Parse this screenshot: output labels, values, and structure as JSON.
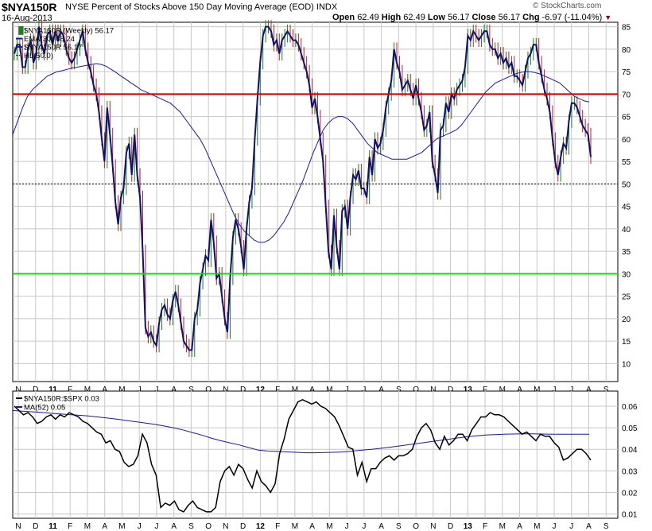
{
  "header": {
    "symbol": "$NYA150R",
    "title": "NYSE Percent of Stocks Above 150 Day Moving Average (EOD)",
    "exchange": "INDX",
    "date": "16-Aug-2013",
    "open_label": "Open",
    "open": "62.49",
    "high_label": "High",
    "high": "62.49",
    "low_label": "Low",
    "low": "56.17",
    "close_label": "Close",
    "close": "56.17",
    "chg_label": "Chg",
    "chg": "-6.97 (-11.04%)",
    "chg_icon": "down-triangle-icon",
    "watermark": "© StockCharts.com"
  },
  "colors": {
    "price": "#10106e",
    "ema": "#1a1aa0",
    "up_bar": "#1e7b1e",
    "down_bar": "#b22222",
    "red_line": "#cc0000",
    "green_line": "#22cc22",
    "ratio": "#000000",
    "ma": "#1a1aa0",
    "grid": "#c8c8c8"
  },
  "legend_top": [
    {
      "text": "$NYA150R (Weekly) 56.17",
      "swatch": "ohlc"
    },
    {
      "text": "EMA(30) 68.24",
      "swatch": "line"
    },
    {
      "text": "$NYA150R 56.17",
      "swatch": "line"
    },
    {
      "text": "HL(50.0)",
      "swatch": "dots"
    }
  ],
  "legend_bottom": [
    {
      "text": "$NYA150R:$SPX 0.03",
      "swatch": "line"
    },
    {
      "text": "MA(52) 0.05",
      "swatch": "line"
    }
  ],
  "x_ticks": [
    "N",
    "D",
    "11",
    "F",
    "M",
    "A",
    "M",
    "J",
    "J",
    "A",
    "S",
    "O",
    "N",
    "D",
    "12",
    "F",
    "M",
    "A",
    "M",
    "J",
    "J",
    "A",
    "S",
    "O",
    "N",
    "D",
    "13",
    "F",
    "M",
    "A",
    "M",
    "J",
    "J",
    "A",
    "S"
  ],
  "chart_data": [
    {
      "type": "line",
      "title": "$NYA150R (Weekly)",
      "ylim": [
        6,
        86
      ],
      "y_ticks": [
        10,
        15,
        20,
        25,
        30,
        35,
        40,
        45,
        50,
        55,
        60,
        65,
        70,
        75,
        80,
        85
      ],
      "horizontal_lines": [
        {
          "name": "HL(50.0)",
          "value": 50,
          "style": "dotted"
        },
        {
          "value": 70,
          "color": "red"
        },
        {
          "value": 30,
          "color": "green"
        }
      ],
      "grid": true,
      "series": [
        {
          "name": "$NYA150R",
          "values": [
            79,
            81,
            81,
            76,
            76,
            80,
            82,
            77,
            79,
            85,
            81,
            79,
            83,
            84,
            81,
            84,
            82,
            84,
            83,
            80,
            78,
            77,
            78,
            80,
            82,
            84,
            80,
            77,
            75,
            72,
            70,
            66,
            60,
            55,
            67,
            61,
            54,
            46,
            41,
            47,
            49,
            57,
            59,
            52,
            61,
            52,
            47,
            35,
            18,
            16,
            17,
            15,
            14,
            19,
            22,
            23,
            21,
            20,
            24,
            26,
            23,
            19,
            15,
            14,
            13,
            13,
            20,
            22,
            28,
            31,
            34,
            33,
            42,
            37,
            29,
            30,
            25,
            20,
            17,
            29,
            38,
            42,
            40,
            36,
            31,
            40,
            46,
            49,
            60,
            69,
            77,
            83,
            85,
            85,
            84,
            81,
            82,
            79,
            82,
            83,
            84,
            83,
            82,
            82,
            81,
            79,
            77,
            75,
            72,
            67,
            69,
            65,
            60,
            55,
            45,
            35,
            31,
            43,
            36,
            31,
            44,
            45,
            40,
            47,
            52,
            51,
            53,
            49,
            49,
            47,
            56,
            52,
            60,
            58,
            59,
            62,
            67,
            70,
            73,
            80,
            77,
            75,
            71,
            72,
            73,
            71,
            69,
            72,
            69,
            66,
            62,
            63,
            66,
            55,
            52,
            48,
            62,
            63,
            68,
            66,
            70,
            69,
            71,
            72,
            73,
            76,
            83,
            82,
            84,
            83,
            82,
            83,
            84,
            84,
            81,
            80,
            80,
            78,
            79,
            77,
            78,
            76,
            77,
            74,
            74,
            73,
            72,
            75,
            78,
            79,
            81,
            81,
            77,
            74,
            71,
            69,
            66,
            60,
            55,
            52,
            56,
            59,
            58,
            64,
            68,
            68,
            67,
            65,
            63,
            62,
            61,
            56
          ]
        },
        {
          "name": "EMA(30)",
          "values": [
            61,
            64,
            67,
            69.5,
            71,
            72,
            73,
            74,
            74.5,
            75,
            75.2,
            75.5,
            75.8,
            76,
            76.2,
            76.4,
            76.6,
            76.8,
            76.6,
            76.2,
            75.5,
            74.8,
            74,
            73.3,
            72.5,
            71.8,
            71,
            70.5,
            70,
            69.5,
            69,
            68.5,
            68,
            67,
            66,
            64.5,
            63,
            61.5,
            60,
            58,
            55.5,
            53,
            50.5,
            48,
            45.5,
            43,
            41,
            39.5,
            38.5,
            37.5,
            37,
            37,
            37.5,
            38.5,
            40,
            41.5,
            43.5,
            46,
            48.5,
            51,
            54,
            57,
            59.5,
            62,
            63.5,
            64.5,
            65,
            65,
            64.5,
            63.5,
            62,
            60.5,
            59,
            58,
            57,
            56.5,
            56,
            55.5,
            55.5,
            55.5,
            55.5,
            56,
            56.5,
            57,
            58,
            59,
            60,
            60.5,
            61,
            61.5,
            62,
            63,
            64.5,
            66,
            67.5,
            69,
            70.5,
            71.5,
            72.5,
            73,
            73.5,
            74,
            74.5,
            74.8,
            75,
            75,
            74.8,
            74.5,
            74,
            73.5,
            73,
            72.5,
            71.5,
            70.5,
            69.5,
            69,
            68.5,
            68.24
          ]
        }
      ]
    },
    {
      "type": "line",
      "title": "$NYA150R:$SPX",
      "ylim": [
        0.008,
        0.067
      ],
      "y_ticks": [
        0.01,
        0.02,
        0.03,
        0.04,
        0.05,
        0.06
      ],
      "grid": true,
      "series": [
        {
          "name": "$NYA150R:$SPX",
          "values": [
            0.06,
            0.058,
            0.056,
            0.057,
            0.055,
            0.052,
            0.053,
            0.055,
            0.056,
            0.054,
            0.056,
            0.055,
            0.057,
            0.056,
            0.055,
            0.053,
            0.052,
            0.05,
            0.048,
            0.047,
            0.043,
            0.044,
            0.04,
            0.039,
            0.034,
            0.032,
            0.033,
            0.037,
            0.047,
            0.043,
            0.033,
            0.028,
            0.013,
            0.015,
            0.014,
            0.016,
            0.012,
            0.011,
            0.014,
            0.016,
            0.013,
            0.012,
            0.011,
            0.011,
            0.013,
            0.025,
            0.03,
            0.032,
            0.028,
            0.033,
            0.031,
            0.026,
            0.022,
            0.03,
            0.025,
            0.023,
            0.02,
            0.024,
            0.038,
            0.045,
            0.054,
            0.058,
            0.062,
            0.063,
            0.062,
            0.061,
            0.062,
            0.06,
            0.059,
            0.057,
            0.055,
            0.051,
            0.046,
            0.041,
            0.04,
            0.028,
            0.034,
            0.025,
            0.031,
            0.031,
            0.034,
            0.036,
            0.037,
            0.035,
            0.037,
            0.037,
            0.038,
            0.04,
            0.046,
            0.05,
            0.052,
            0.049,
            0.043,
            0.04,
            0.046,
            0.042,
            0.044,
            0.047,
            0.047,
            0.044,
            0.049,
            0.052,
            0.055,
            0.055,
            0.057,
            0.056,
            0.056,
            0.055,
            0.053,
            0.051,
            0.049,
            0.047,
            0.048,
            0.046,
            0.044,
            0.047,
            0.046,
            0.046,
            0.043,
            0.041,
            0.035,
            0.036,
            0.038,
            0.04,
            0.04,
            0.038,
            0.035
          ]
        },
        {
          "name": "MA(52)",
          "values": [
            0.058,
            0.0577,
            0.0574,
            0.0571,
            0.0567,
            0.0564,
            0.0561,
            0.0558,
            0.0555,
            0.055,
            0.0545,
            0.054,
            0.0534,
            0.0528,
            0.0522,
            0.0516,
            0.0508,
            0.05,
            0.049,
            0.0478,
            0.0466,
            0.0452,
            0.044,
            0.043,
            0.042,
            0.0408,
            0.0396,
            0.0392,
            0.039,
            0.0388,
            0.0386,
            0.0384,
            0.0384,
            0.0385,
            0.0386,
            0.0388,
            0.0392,
            0.0396,
            0.04,
            0.0405,
            0.041,
            0.0416,
            0.0422,
            0.0428,
            0.0434,
            0.044,
            0.0446,
            0.0452,
            0.0458,
            0.0462,
            0.0466,
            0.0468,
            0.047,
            0.0471,
            0.0472,
            0.0472,
            0.0471,
            0.047,
            0.047,
            0.047,
            0.047,
            0.047
          ]
        }
      ]
    }
  ]
}
